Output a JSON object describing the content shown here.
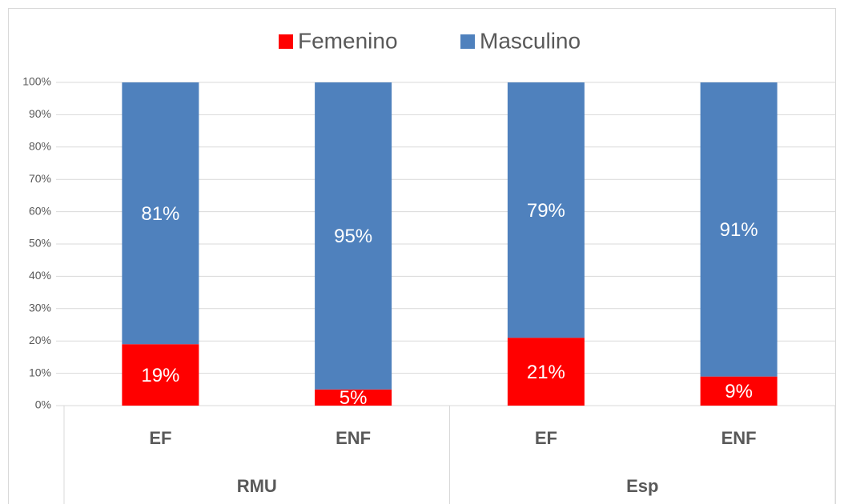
{
  "chart_data": {
    "type": "stacked_bar",
    "groups": [
      {
        "name": "RMU",
        "categories": [
          "EF",
          "ENF"
        ]
      },
      {
        "name": "Esp",
        "categories": [
          "EF",
          "ENF"
        ]
      }
    ],
    "series": [
      {
        "name": "Femenino",
        "color": "#ff0000",
        "values": [
          19,
          5,
          21,
          9
        ],
        "value_labels": [
          "19%",
          "5%",
          "21%",
          "9%"
        ]
      },
      {
        "name": "Masculino",
        "color": "#4f81bd",
        "values": [
          81,
          95,
          79,
          91
        ],
        "value_labels": [
          "81%",
          "95%",
          "79%",
          "91%"
        ]
      }
    ],
    "ylim": [
      0,
      100
    ],
    "yticks": [
      {
        "value": 0,
        "label": "0%"
      },
      {
        "value": 10,
        "label": "10%"
      },
      {
        "value": 20,
        "label": "20%"
      },
      {
        "value": 30,
        "label": "30%"
      },
      {
        "value": 40,
        "label": "40%"
      },
      {
        "value": 50,
        "label": "50%"
      },
      {
        "value": 60,
        "label": "60%"
      },
      {
        "value": 70,
        "label": "70%"
      },
      {
        "value": 80,
        "label": "80%"
      },
      {
        "value": 90,
        "label": "90%"
      },
      {
        "value": 100,
        "label": "100%"
      }
    ],
    "grid": true,
    "legend": "top"
  }
}
